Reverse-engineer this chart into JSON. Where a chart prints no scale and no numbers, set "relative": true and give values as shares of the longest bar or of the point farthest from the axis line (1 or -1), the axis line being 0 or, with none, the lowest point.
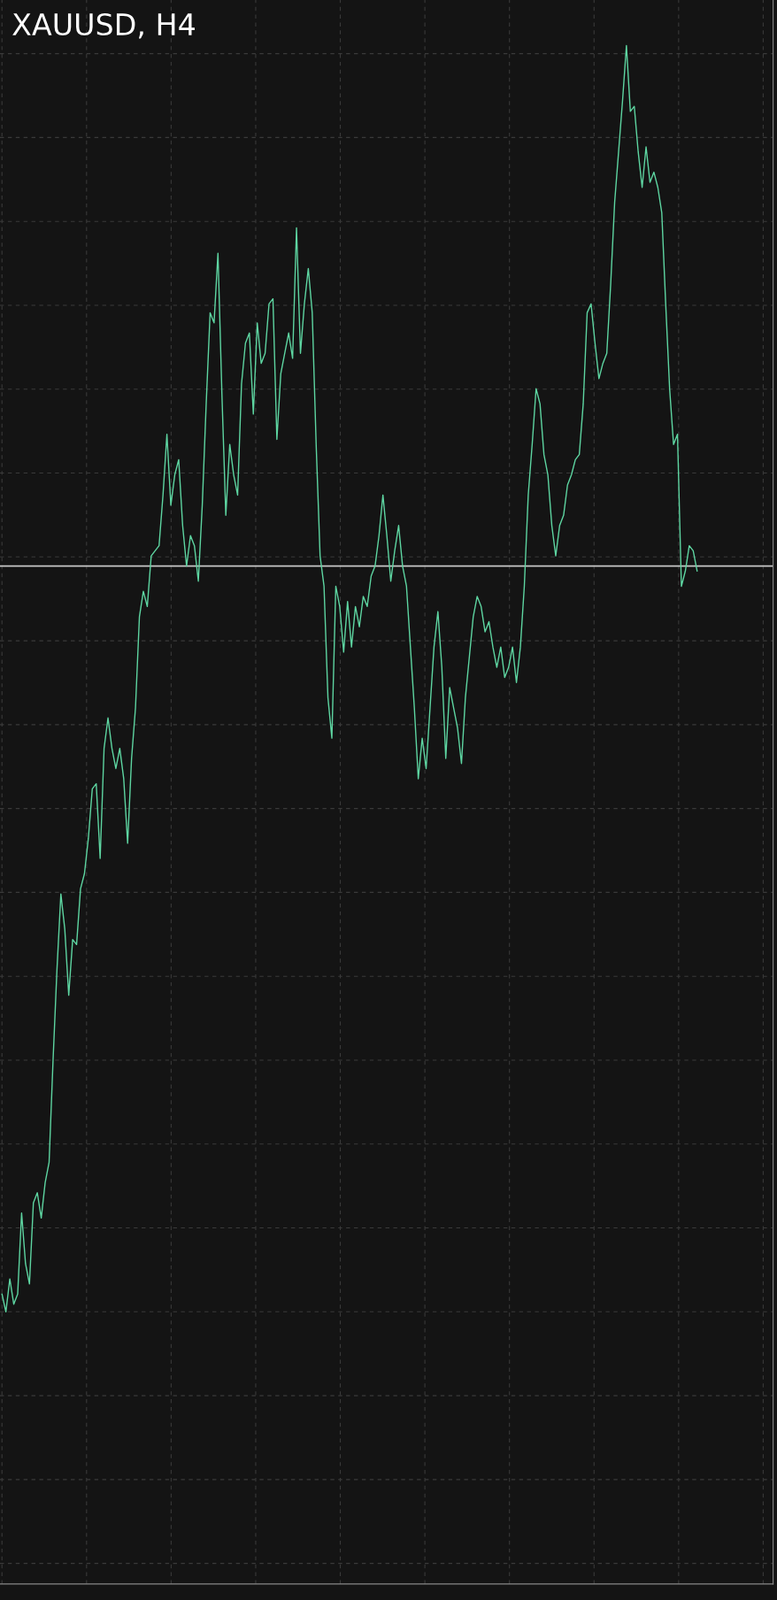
{
  "chart_data": {
    "type": "line",
    "title": "XAUUSD, H4",
    "relative": true,
    "grid": true,
    "marker": "none",
    "line_style": "solid",
    "tick_labels": false,
    "categories": [
      null,
      null,
      null,
      null,
      null,
      null,
      null,
      null,
      null,
      null,
      null,
      null,
      null,
      null,
      null,
      null,
      null,
      null,
      null,
      null,
      null,
      null,
      null,
      null,
      null,
      null,
      null,
      null,
      null,
      null,
      null,
      null,
      null,
      null,
      null,
      null,
      null,
      null,
      null,
      null,
      null,
      null,
      null,
      null,
      null,
      null,
      null,
      null,
      null,
      null,
      null,
      null,
      null,
      null,
      null,
      null,
      null,
      null,
      null,
      null,
      null,
      null,
      null,
      null,
      null,
      null,
      null,
      null,
      null,
      null,
      null,
      null,
      null,
      null,
      null,
      null,
      null,
      null,
      null,
      null,
      null,
      null,
      null,
      null,
      null,
      null,
      null,
      null,
      null,
      null,
      null,
      null,
      null,
      null,
      null,
      null,
      null,
      null,
      null,
      null,
      null,
      null,
      null,
      null,
      null,
      null,
      null,
      null,
      null,
      null,
      null,
      null,
      null,
      null,
      null,
      null,
      null,
      null,
      null,
      null,
      null,
      null,
      null,
      null,
      null,
      null,
      null,
      null,
      null,
      null,
      null,
      null,
      null,
      null,
      null,
      null,
      null,
      null,
      null,
      null,
      null,
      null,
      null,
      null,
      null,
      null,
      null,
      null,
      null,
      null,
      null,
      null,
      null,
      null,
      null,
      null,
      null,
      null,
      null,
      null,
      null,
      null,
      null,
      null,
      null,
      null,
      null,
      null,
      null,
      null,
      null,
      null,
      null,
      null,
      null,
      null,
      null,
      null
    ],
    "series": [
      {
        "color": "#5ed6a2",
        "values": [
          0.014,
          0,
          0.026,
          0.006,
          0.014,
          0.078,
          0.038,
          0.022,
          0.086,
          0.094,
          0.074,
          0.102,
          0.118,
          0.198,
          0.27,
          0.33,
          0.302,
          0.25,
          0.294,
          0.29,
          0.334,
          0.346,
          0.374,
          0.413,
          0.417,
          0.358,
          0.445,
          0.469,
          0.445,
          0.429,
          0.445,
          0.421,
          0.37,
          0.437,
          0.477,
          0.549,
          0.569,
          0.557,
          0.597,
          0.601,
          0.605,
          0.645,
          0.693,
          0.637,
          0.661,
          0.673,
          0.621,
          0.589,
          0.613,
          0.605,
          0.577,
          0.637,
          0.717,
          0.789,
          0.781,
          0.836,
          0.725,
          0.629,
          0.685,
          0.661,
          0.645,
          0.733,
          0.765,
          0.773,
          0.709,
          0.781,
          0.749,
          0.757,
          0.796,
          0.8,
          0.689,
          0.741,
          0.757,
          0.773,
          0.753,
          0.856,
          0.757,
          0.796,
          0.824,
          0.789,
          0.685,
          0.597,
          0.573,
          0.485,
          0.453,
          0.573,
          0.557,
          0.521,
          0.561,
          0.525,
          0.557,
          0.541,
          0.565,
          0.557,
          0.581,
          0.589,
          0.613,
          0.645,
          0.613,
          0.577,
          0.601,
          0.621,
          0.589,
          0.573,
          0.525,
          0.477,
          0.421,
          0.453,
          0.429,
          0.477,
          0.525,
          0.553,
          0.509,
          0.437,
          0.493,
          0.477,
          0.461,
          0.433,
          0.485,
          0.517,
          0.549,
          0.565,
          0.557,
          0.537,
          0.545,
          0.525,
          0.509,
          0.525,
          0.501,
          0.509,
          0.525,
          0.497,
          0.525,
          0.573,
          0.645,
          0.685,
          0.729,
          0.717,
          0.677,
          0.661,
          0.621,
          0.597,
          0.621,
          0.629,
          0.653,
          0.661,
          0.673,
          0.677,
          0.717,
          0.789,
          0.796,
          0.765,
          0.737,
          0.749,
          0.757,
          0.812,
          0.876,
          0.916,
          0.956,
          1,
          0.948,
          0.952,
          0.916,
          0.888,
          0.92,
          0.892,
          0.9,
          0.888,
          0.868,
          0.796,
          0.729,
          0.685,
          0.693,
          0.573,
          0.585,
          0.605,
          0.601,
          0.585
        ]
      }
    ],
    "ref_lines": [
      {
        "axis": "y",
        "value": 0.589,
        "color": "#c8c8c8"
      }
    ]
  }
}
